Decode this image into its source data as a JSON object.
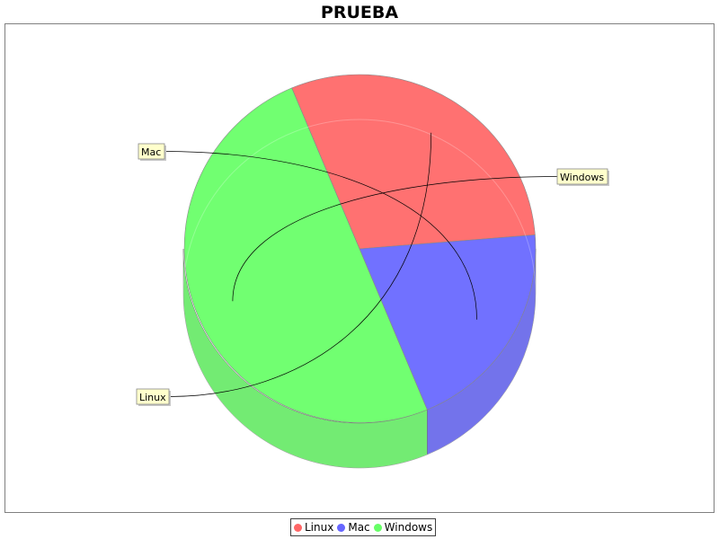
{
  "chart_data": {
    "type": "pie",
    "title": "PRUEBA",
    "three_d": true,
    "slices": [
      {
        "name": "Linux",
        "value": 30,
        "color": "#ff6666"
      },
      {
        "name": "Mac",
        "value": 20,
        "color": "#6666ff"
      },
      {
        "name": "Windows",
        "value": 50,
        "color": "#66ff66"
      }
    ],
    "legend": {
      "position": "bottom-center"
    }
  },
  "colors": {
    "label_background": "#ffffcc",
    "label_border": "#888888",
    "leader_line": "#000000",
    "plot_border": "#808080"
  }
}
